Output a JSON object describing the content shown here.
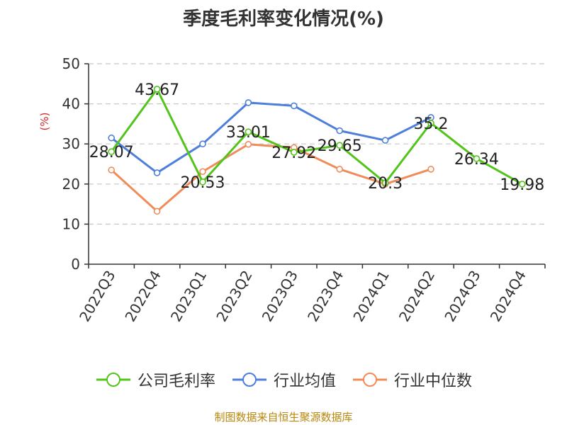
{
  "title": "季度毛利率变化情况(%)",
  "source": "制图数据来自恒生聚源数据库",
  "chart_data": {
    "type": "line",
    "title": "季度毛利率变化情况(%)",
    "ylabel": "(%)",
    "ylim": [
      0,
      50
    ],
    "yticks": [
      0,
      10,
      20,
      30,
      40,
      50
    ],
    "grid": true,
    "legend_position": "bottom",
    "categories": [
      "2022Q3",
      "2022Q4",
      "2023Q1",
      "2023Q2",
      "2023Q3",
      "2023Q4",
      "2024Q1",
      "2024Q2",
      "2024Q3",
      "2024Q4"
    ],
    "series": [
      {
        "name": "公司毛利率",
        "color": "#52c41a",
        "values": [
          28.07,
          43.67,
          20.53,
          33.01,
          27.92,
          29.65,
          20.3,
          35.2,
          26.34,
          19.98
        ],
        "labels": [
          "28.07",
          "43.67",
          "20.53",
          "33.01",
          "27.92",
          "29.65",
          "20.3",
          "35.2",
          "26.34",
          "19.98"
        ]
      },
      {
        "name": "行业均值",
        "color": "#4e7fdb",
        "values": [
          31.5,
          22.8,
          30.0,
          40.3,
          39.5,
          33.3,
          30.9,
          36.6,
          null,
          null
        ]
      },
      {
        "name": "行业中位数",
        "color": "#f08c5a",
        "values": [
          23.5,
          13.2,
          23.1,
          29.9,
          29.1,
          23.7,
          20.0,
          23.7,
          null,
          null
        ]
      }
    ]
  }
}
